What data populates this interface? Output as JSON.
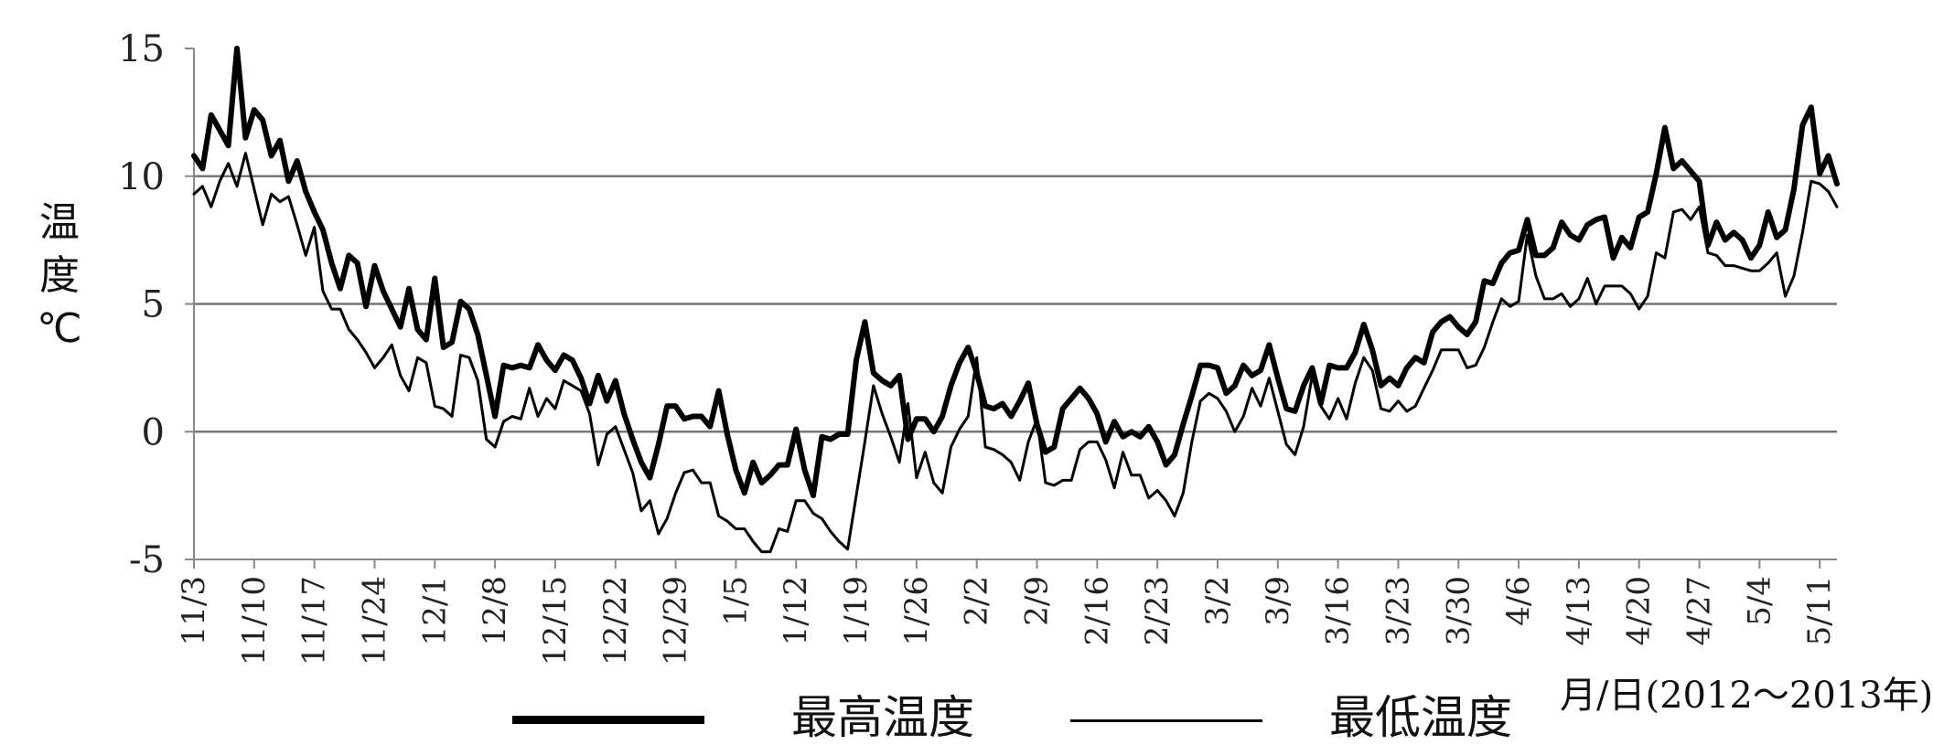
{
  "chart_data": {
    "type": "line",
    "title": "",
    "xlabel": "月/日(2012～2013年)",
    "ylabel_chars": [
      "温",
      "度",
      "℃"
    ],
    "ylim": [
      -5,
      15
    ],
    "yticks": [
      -5,
      0,
      5,
      10,
      15
    ],
    "grid_lines_y": [
      10,
      5,
      0
    ],
    "xtick_labels": [
      "11/3",
      "11/10",
      "11/17",
      "11/24",
      "12/1",
      "12/8",
      "12/15",
      "12/22",
      "12/29",
      "1/5",
      "1/12",
      "1/19",
      "1/26",
      "2/2",
      "2/9",
      "2/16",
      "2/23",
      "3/2",
      "3/9",
      "3/16",
      "3/23",
      "3/30",
      "4/6",
      "4/13",
      "4/20",
      "4/27",
      "5/4",
      "5/11"
    ],
    "legend_position": "bottom",
    "series": [
      {
        "name": "最高温度",
        "color": "#000000",
        "values": [
          10.8,
          10.3,
          12.4,
          11.8,
          11.2,
          15.0,
          11.5,
          12.6,
          12.2,
          10.8,
          11.4,
          9.8,
          10.6,
          9.4,
          8.6,
          7.9,
          6.6,
          5.6,
          6.9,
          6.6,
          4.9,
          6.5,
          5.5,
          4.8,
          4.1,
          5.6,
          4.0,
          3.6,
          6.0,
          3.3,
          3.5,
          5.1,
          4.8,
          3.8,
          2.2,
          0.6,
          2.6,
          2.5,
          2.6,
          2.5,
          3.4,
          2.8,
          2.4,
          3.0,
          2.8,
          2.1,
          1.1,
          2.2,
          1.2,
          2.0,
          0.7,
          -0.3,
          -1.2,
          -1.8,
          -0.5,
          1.0,
          1.0,
          0.5,
          0.6,
          0.6,
          0.2,
          1.6,
          -0.1,
          -1.5,
          -2.4,
          -1.2,
          -2.0,
          -1.7,
          -1.3,
          -1.3,
          0.1,
          -1.5,
          -2.5,
          -0.2,
          -0.3,
          -0.1,
          -0.1,
          2.8,
          4.3,
          2.3,
          2.0,
          1.8,
          2.2,
          -0.3,
          0.5,
          0.5,
          0.0,
          0.6,
          1.8,
          2.7,
          3.3,
          2.3,
          1.0,
          0.9,
          1.1,
          0.6,
          1.2,
          1.9,
          0.3,
          -0.8,
          -0.6,
          0.9,
          1.3,
          1.7,
          1.3,
          0.7,
          -0.4,
          0.4,
          -0.2,
          0.0,
          -0.2,
          0.2,
          -0.4,
          -1.3,
          -0.9,
          0.3,
          1.4,
          2.6,
          2.6,
          2.5,
          1.5,
          1.8,
          2.6,
          2.2,
          2.4,
          3.4,
          2.1,
          0.9,
          0.8,
          1.8,
          2.5,
          1.1,
          2.6,
          2.5,
          2.5,
          3.1,
          4.2,
          3.2,
          1.8,
          2.1,
          1.8,
          2.5,
          2.9,
          2.7,
          3.9,
          4.3,
          4.5,
          4.1,
          3.8,
          4.3,
          5.9,
          5.8,
          6.6,
          7.0,
          7.1,
          8.3,
          6.9,
          6.9,
          7.2,
          8.2,
          7.7,
          7.5,
          8.1,
          8.3,
          8.4,
          6.8,
          7.6,
          7.2,
          8.4,
          8.6,
          10.1,
          11.9,
          10.3,
          10.6,
          10.2,
          9.8,
          7.3,
          8.2,
          7.5,
          7.8,
          7.5,
          6.8,
          7.3,
          8.6,
          7.6,
          7.9,
          9.5,
          12.0,
          12.7,
          10.1,
          10.8,
          9.7
        ]
      },
      {
        "name": "最低温度",
        "color": "#000000",
        "values": [
          9.3,
          9.6,
          8.8,
          9.8,
          10.5,
          9.6,
          10.9,
          9.5,
          8.1,
          9.3,
          9.0,
          9.2,
          8.1,
          6.9,
          8.0,
          5.5,
          4.8,
          4.8,
          4.0,
          3.6,
          3.1,
          2.5,
          2.9,
          3.4,
          2.2,
          1.6,
          2.9,
          2.7,
          1.0,
          0.9,
          0.6,
          3.0,
          2.9,
          2.0,
          -0.3,
          -0.6,
          0.4,
          0.6,
          0.5,
          1.7,
          0.6,
          1.3,
          0.9,
          2.0,
          1.8,
          1.6,
          0.7,
          -1.3,
          -0.1,
          0.2,
          -0.7,
          -1.6,
          -3.1,
          -2.7,
          -4.0,
          -3.4,
          -2.4,
          -1.6,
          -1.5,
          -2.0,
          -2.0,
          -3.3,
          -3.5,
          -3.8,
          -3.8,
          -4.3,
          -4.7,
          -4.7,
          -3.8,
          -3.9,
          -2.7,
          -2.7,
          -3.2,
          -3.4,
          -3.9,
          -4.3,
          -4.6,
          -2.5,
          -0.4,
          1.8,
          0.7,
          -0.2,
          -1.2,
          1.1,
          -1.8,
          -0.8,
          -2.0,
          -2.4,
          -0.6,
          0.1,
          0.6,
          2.9,
          -0.6,
          -0.7,
          -0.9,
          -1.2,
          -1.9,
          -0.4,
          0.5,
          -2.0,
          -2.1,
          -1.9,
          -1.9,
          -0.7,
          -0.4,
          -0.4,
          -1.1,
          -2.2,
          -0.8,
          -1.7,
          -1.7,
          -2.6,
          -2.3,
          -2.7,
          -3.3,
          -2.4,
          -0.4,
          1.2,
          1.5,
          1.3,
          0.8,
          0.0,
          0.6,
          1.7,
          1.0,
          2.1,
          0.8,
          -0.5,
          -0.9,
          0.2,
          2.2,
          1.0,
          0.5,
          1.3,
          0.5,
          1.9,
          2.9,
          2.4,
          0.9,
          0.8,
          1.2,
          0.8,
          1.0,
          1.7,
          2.4,
          3.2,
          3.2,
          3.2,
          2.5,
          2.6,
          3.3,
          4.3,
          5.2,
          4.9,
          5.1,
          7.7,
          6.1,
          5.2,
          5.2,
          5.4,
          4.9,
          5.2,
          6.0,
          5.0,
          5.7,
          5.7,
          5.7,
          5.4,
          4.8,
          5.3,
          7.0,
          6.8,
          8.6,
          8.7,
          8.3,
          8.8,
          7.0,
          6.9,
          6.5,
          6.5,
          6.4,
          6.3,
          6.3,
          6.6,
          7.0,
          5.3,
          6.1,
          7.8,
          9.8,
          9.7,
          9.4,
          8.8
        ]
      }
    ]
  }
}
